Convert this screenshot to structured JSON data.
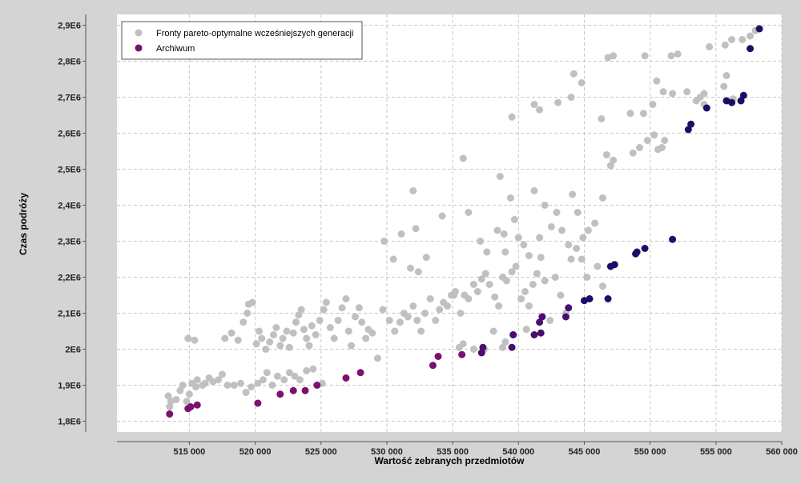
{
  "chart_data": {
    "type": "scatter",
    "xlabel": "Wartość zebranych przedmiotów",
    "ylabel": "Czas podróży",
    "xlim": [
      509500,
      560000
    ],
    "ylim": [
      1770000,
      2930000
    ],
    "x_ticks": [
      515000,
      520000,
      525000,
      530000,
      535000,
      540000,
      545000,
      550000,
      555000,
      560000
    ],
    "x_tick_labels": [
      "515 000",
      "520 000",
      "525 000",
      "530 000",
      "535 000",
      "540 000",
      "545 000",
      "550 000",
      "555 000",
      "560 000"
    ],
    "y_ticks": [
      1800000,
      1900000,
      2000000,
      2100000,
      2200000,
      2300000,
      2400000,
      2500000,
      2600000,
      2700000,
      2800000,
      2900000
    ],
    "y_tick_labels": [
      "1,8E6",
      "1,9E6",
      "2E6",
      "2,1E6",
      "2,2E6",
      "2,3E6",
      "2,4E6",
      "2,5E6",
      "2,6E6",
      "2,7E6",
      "2,8E6",
      "2,9E6"
    ],
    "grid": true,
    "legend_position": "top-left",
    "colors": {
      "background": "#d4d4d4",
      "plot_background": "#ffffff",
      "grid": "#c8c8c8",
      "previous_fronts": "#c0c0c0",
      "archive": "#7a1070",
      "archive_dark": "#1e0d68"
    },
    "series": [
      {
        "name": "Fronty pareto-optymalne wcześniejszych generacji",
        "color": "#c0c0c0",
        "points": [
          [
            513400,
            1870000
          ],
          [
            513600,
            1855000
          ],
          [
            513500,
            1840000
          ],
          [
            514000,
            1860000
          ],
          [
            514300,
            1885000
          ],
          [
            514500,
            1900000
          ],
          [
            514800,
            1855000
          ],
          [
            515000,
            1875000
          ],
          [
            515200,
            1905000
          ],
          [
            515500,
            1895000
          ],
          [
            515600,
            1915000
          ],
          [
            516000,
            1900000
          ],
          [
            516200,
            1905000
          ],
          [
            516500,
            1920000
          ],
          [
            516800,
            1910000
          ],
          [
            517200,
            1915000
          ],
          [
            517500,
            1930000
          ],
          [
            517900,
            1900000
          ],
          [
            518400,
            1900000
          ],
          [
            518900,
            1905000
          ],
          [
            519300,
            1880000
          ],
          [
            519700,
            1895000
          ],
          [
            520200,
            1905000
          ],
          [
            520600,
            1915000
          ],
          [
            520900,
            1935000
          ],
          [
            521300,
            1900000
          ],
          [
            521700,
            1925000
          ],
          [
            522200,
            1915000
          ],
          [
            522600,
            1935000
          ],
          [
            523000,
            1925000
          ],
          [
            523400,
            1915000
          ],
          [
            523900,
            1940000
          ],
          [
            524400,
            1945000
          ],
          [
            525100,
            1905000
          ],
          [
            514900,
            2030000
          ],
          [
            515400,
            2025000
          ],
          [
            517700,
            2030000
          ],
          [
            518200,
            2045000
          ],
          [
            518700,
            2025000
          ],
          [
            519100,
            2075000
          ],
          [
            519400,
            2100000
          ],
          [
            519500,
            2125000
          ],
          [
            519800,
            2130000
          ],
          [
            520100,
            2015000
          ],
          [
            520300,
            2050000
          ],
          [
            520500,
            2030000
          ],
          [
            520800,
            2000000
          ],
          [
            521100,
            2020000
          ],
          [
            521400,
            2040000
          ],
          [
            521600,
            2060000
          ],
          [
            521900,
            2010000
          ],
          [
            522100,
            2030000
          ],
          [
            522400,
            2050000
          ],
          [
            522600,
            2005000
          ],
          [
            522900,
            2045000
          ],
          [
            523100,
            2075000
          ],
          [
            523300,
            2095000
          ],
          [
            523500,
            2110000
          ],
          [
            523700,
            2055000
          ],
          [
            523900,
            2030000
          ],
          [
            524100,
            2010000
          ],
          [
            524300,
            2065000
          ],
          [
            524600,
            2040000
          ],
          [
            524900,
            2080000
          ],
          [
            525200,
            2110000
          ],
          [
            525400,
            2130000
          ],
          [
            525700,
            2060000
          ],
          [
            526000,
            2030000
          ],
          [
            526300,
            2080000
          ],
          [
            526600,
            2115000
          ],
          [
            526900,
            2140000
          ],
          [
            527100,
            2050000
          ],
          [
            527300,
            2010000
          ],
          [
            527600,
            2090000
          ],
          [
            527900,
            2115000
          ],
          [
            528100,
            2075000
          ],
          [
            528400,
            2030000
          ],
          [
            528600,
            2055000
          ],
          [
            528900,
            2045000
          ],
          [
            529300,
            1975000
          ],
          [
            529700,
            2110000
          ],
          [
            530200,
            2080000
          ],
          [
            530600,
            2050000
          ],
          [
            531000,
            2075000
          ],
          [
            531300,
            2100000
          ],
          [
            531600,
            2090000
          ],
          [
            532000,
            2120000
          ],
          [
            532300,
            2080000
          ],
          [
            532600,
            2050000
          ],
          [
            532900,
            2100000
          ],
          [
            533300,
            2140000
          ],
          [
            533700,
            2080000
          ],
          [
            534000,
            2110000
          ],
          [
            534300,
            2130000
          ],
          [
            534600,
            2120000
          ],
          [
            534900,
            2150000
          ],
          [
            535200,
            2160000
          ],
          [
            535600,
            2100000
          ],
          [
            535900,
            2150000
          ],
          [
            536200,
            2140000
          ],
          [
            536600,
            2180000
          ],
          [
            536900,
            2160000
          ],
          [
            537200,
            2195000
          ],
          [
            537500,
            2210000
          ],
          [
            537800,
            2180000
          ],
          [
            538200,
            2145000
          ],
          [
            538500,
            2120000
          ],
          [
            538800,
            2200000
          ],
          [
            539100,
            2190000
          ],
          [
            539500,
            2215000
          ],
          [
            539800,
            2230000
          ],
          [
            540200,
            2140000
          ],
          [
            540500,
            2160000
          ],
          [
            540800,
            2120000
          ],
          [
            541100,
            2180000
          ],
          [
            541400,
            2210000
          ],
          [
            541700,
            2255000
          ],
          [
            542000,
            2190000
          ],
          [
            542400,
            2080000
          ],
          [
            542800,
            2200000
          ],
          [
            543200,
            2150000
          ],
          [
            543600,
            2100000
          ],
          [
            544000,
            2250000
          ],
          [
            544400,
            2280000
          ],
          [
            544800,
            2250000
          ],
          [
            545200,
            2200000
          ],
          [
            546000,
            2230000
          ],
          [
            546400,
            2175000
          ],
          [
            538100,
            2050000
          ],
          [
            539600,
            2040000
          ],
          [
            540600,
            2055000
          ],
          [
            537400,
            2000000
          ],
          [
            539000,
            2020000
          ],
          [
            538800,
            2005000
          ],
          [
            536600,
            2000000
          ],
          [
            535800,
            2015000
          ],
          [
            535500,
            2005000
          ],
          [
            529800,
            2300000
          ],
          [
            530500,
            2250000
          ],
          [
            531100,
            2320000
          ],
          [
            531800,
            2225000
          ],
          [
            532400,
            2215000
          ],
          [
            533000,
            2255000
          ],
          [
            532200,
            2335000
          ],
          [
            532000,
            2440000
          ],
          [
            534200,
            2370000
          ],
          [
            535100,
            2150000
          ],
          [
            536200,
            2380000
          ],
          [
            537100,
            2300000
          ],
          [
            537600,
            2270000
          ],
          [
            538400,
            2330000
          ],
          [
            538900,
            2320000
          ],
          [
            538600,
            2480000
          ],
          [
            539000,
            2270000
          ],
          [
            539400,
            2420000
          ],
          [
            539700,
            2360000
          ],
          [
            540000,
            2310000
          ],
          [
            540400,
            2290000
          ],
          [
            540800,
            2260000
          ],
          [
            541200,
            2440000
          ],
          [
            541600,
            2310000
          ],
          [
            542000,
            2400000
          ],
          [
            542500,
            2340000
          ],
          [
            542900,
            2380000
          ],
          [
            543300,
            2330000
          ],
          [
            543800,
            2290000
          ],
          [
            544100,
            2430000
          ],
          [
            544500,
            2380000
          ],
          [
            544900,
            2310000
          ],
          [
            545300,
            2330000
          ],
          [
            545800,
            2350000
          ],
          [
            546400,
            2420000
          ],
          [
            535800,
            2530000
          ],
          [
            539500,
            2645000
          ],
          [
            541200,
            2680000
          ],
          [
            541600,
            2665000
          ],
          [
            543000,
            2685000
          ],
          [
            544200,
            2765000
          ],
          [
            544800,
            2740000
          ],
          [
            544000,
            2700000
          ],
          [
            546300,
            2640000
          ],
          [
            546700,
            2540000
          ],
          [
            547000,
            2510000
          ],
          [
            547200,
            2525000
          ],
          [
            548700,
            2545000
          ],
          [
            549200,
            2560000
          ],
          [
            549800,
            2580000
          ],
          [
            550300,
            2595000
          ],
          [
            550600,
            2555000
          ],
          [
            550900,
            2560000
          ],
          [
            551100,
            2580000
          ],
          [
            548500,
            2655000
          ],
          [
            549500,
            2655000
          ],
          [
            550200,
            2680000
          ],
          [
            551000,
            2715000
          ],
          [
            551700,
            2710000
          ],
          [
            552800,
            2715000
          ],
          [
            553500,
            2690000
          ],
          [
            553800,
            2700000
          ],
          [
            554100,
            2710000
          ],
          [
            555600,
            2730000
          ],
          [
            555800,
            2760000
          ],
          [
            556300,
            2695000
          ],
          [
            557000,
            2860000
          ],
          [
            557600,
            2870000
          ],
          [
            558000,
            2885000
          ],
          [
            546800,
            2810000
          ],
          [
            547200,
            2815000
          ],
          [
            549600,
            2815000
          ],
          [
            551600,
            2815000
          ],
          [
            552100,
            2820000
          ],
          [
            554500,
            2840000
          ],
          [
            555700,
            2845000
          ],
          [
            556200,
            2860000
          ],
          [
            550500,
            2745000
          ],
          [
            554100,
            2680000
          ]
        ]
      },
      {
        "name": "Archiwum",
        "color": "#7a1070",
        "points": [
          [
            513500,
            1820000
          ],
          [
            514900,
            1835000
          ],
          [
            515100,
            1840000
          ],
          [
            515600,
            1845000
          ],
          [
            520200,
            1850000
          ],
          [
            521900,
            1875000
          ],
          [
            522900,
            1885000
          ],
          [
            523800,
            1885000
          ],
          [
            524700,
            1900000
          ],
          [
            526900,
            1920000
          ],
          [
            528000,
            1935000
          ],
          [
            533500,
            1955000
          ],
          [
            533900,
            1980000
          ],
          [
            535700,
            1985000
          ],
          [
            537200,
            1990000
          ],
          [
            537300,
            2005000
          ],
          [
            539500,
            2005000
          ],
          [
            539600,
            2040000
          ],
          [
            541200,
            2040000
          ],
          [
            541700,
            2045000
          ],
          [
            541600,
            2075000
          ],
          [
            541800,
            2090000
          ],
          [
            543600,
            2090000
          ],
          [
            543800,
            2115000
          ],
          [
            545000,
            2135000
          ],
          [
            545400,
            2140000
          ],
          [
            546800,
            2140000
          ],
          [
            547000,
            2230000
          ],
          [
            547300,
            2235000
          ],
          [
            548900,
            2265000
          ],
          [
            549000,
            2270000
          ],
          [
            549600,
            2280000
          ],
          [
            551700,
            2305000
          ],
          [
            552900,
            2610000
          ],
          [
            553100,
            2625000
          ],
          [
            554300,
            2670000
          ],
          [
            555800,
            2690000
          ],
          [
            556200,
            2685000
          ],
          [
            556900,
            2690000
          ],
          [
            557100,
            2705000
          ],
          [
            557600,
            2835000
          ],
          [
            558300,
            2890000
          ]
        ]
      }
    ]
  }
}
